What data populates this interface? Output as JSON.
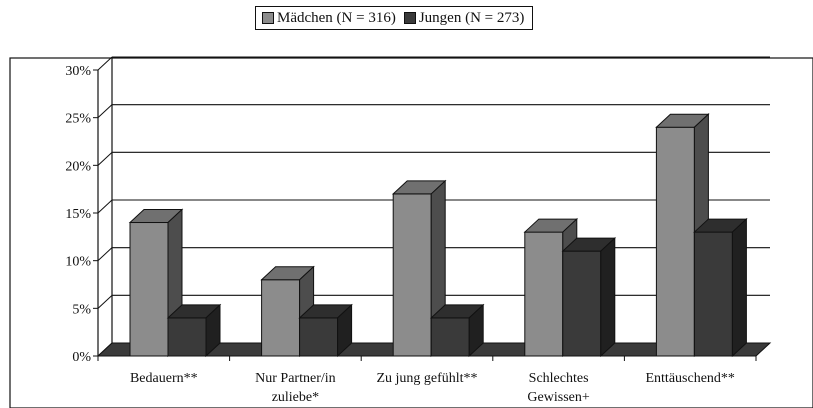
{
  "legend": {
    "items": [
      {
        "label": "Mädchen (N = 316)",
        "color": "#8c8c8c"
      },
      {
        "label": "Jungen (N = 273)",
        "color": "#3a3a3a"
      }
    ]
  },
  "chart_data": {
    "type": "bar",
    "title": "",
    "xlabel": "",
    "ylabel": "",
    "categories": [
      "Bedauern**",
      "Nur Partner/in zuliebe*",
      "Zu jung gefühlt**",
      "Schlechtes Gewissen+",
      "Enttäuschend**"
    ],
    "category_lines": [
      [
        "Bedauern**"
      ],
      [
        "Nur Partner/in",
        "zuliebe*"
      ],
      [
        "Zu jung gefühlt**"
      ],
      [
        "Schlechtes",
        "Gewissen+"
      ],
      [
        "Enttäuschend**"
      ]
    ],
    "series": [
      {
        "name": "Mädchen (N = 316)",
        "values": [
          14,
          8,
          17,
          13,
          24
        ],
        "color": "#8c8c8c"
      },
      {
        "name": "Jungen (N = 273)",
        "values": [
          4,
          4,
          4,
          11,
          13
        ],
        "color": "#3a3a3a"
      }
    ],
    "yticks": [
      "0%",
      "5%",
      "10%",
      "15%",
      "20%",
      "25%",
      "30%"
    ],
    "ylim": [
      0,
      30
    ],
    "grid": true,
    "legend_position": "top-center",
    "style": "3d-bar"
  }
}
